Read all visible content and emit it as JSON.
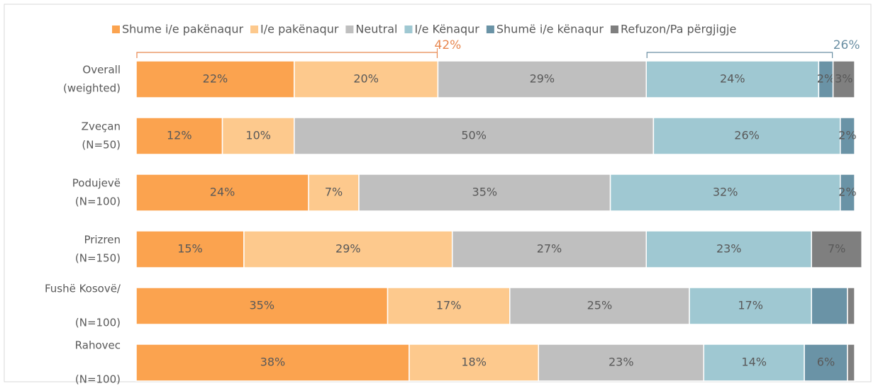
{
  "chart_data": {
    "type": "bar",
    "orientation": "horizontal",
    "stacked": true,
    "categories": [
      [
        "Overall",
        "(weighted)"
      ],
      [
        "Zveçan",
        "(N=50)"
      ],
      [
        "Podujevë",
        "(N=100)"
      ],
      [
        "Prizren",
        "(N=150)"
      ],
      [
        "Fushë Kosovë/",
        "(N=100)"
      ],
      [
        "Rahovec",
        "(N=100)"
      ]
    ],
    "xlim": [
      0,
      100
    ],
    "legend": "top",
    "series": [
      {
        "name": "Shume i/e pakënaqur",
        "color": "#fba34f",
        "values": [
          22,
          12,
          24,
          15,
          35,
          38
        ],
        "value_labels": [
          "22%",
          "12%",
          "24%",
          "15%",
          "35%",
          "38%"
        ]
      },
      {
        "name": "I/e pakënaqur",
        "color": "#fdc98d",
        "values": [
          20,
          10,
          7,
          29,
          17,
          18
        ],
        "value_labels": [
          "20%",
          "10%",
          "7%",
          "29%",
          "17%",
          "18%"
        ]
      },
      {
        "name": "Neutral",
        "color": "#bfbfbf",
        "values": [
          29,
          50,
          35,
          27,
          25,
          23
        ],
        "value_labels": [
          "29%",
          "50%",
          "35%",
          "27%",
          "25%",
          "23%"
        ]
      },
      {
        "name": "I/e Kënaqur",
        "color": "#9fc8d2",
        "values": [
          24,
          26,
          32,
          23,
          17,
          14
        ],
        "value_labels": [
          "24%",
          "26%",
          "32%",
          "23%",
          "17%",
          "14%"
        ]
      },
      {
        "name": "Shumë i/e kënaqur",
        "color": "#6a93a6",
        "values": [
          2,
          2,
          2,
          0,
          5,
          6
        ],
        "value_labels": [
          "2%",
          "2%",
          "2%",
          null,
          null,
          "6%"
        ]
      },
      {
        "name": "Refuzon/Pa përgjigje",
        "color": "#7f7f7f",
        "values": [
          3,
          0,
          0,
          7,
          1,
          1
        ],
        "value_labels": [
          "3%",
          null,
          null,
          "7%",
          null,
          null
        ]
      }
    ],
    "annotations": [
      {
        "text": "42%",
        "row": 0,
        "from_series": 0,
        "to_series": 1,
        "color": "#e8874f"
      },
      {
        "text": "26%",
        "row": 0,
        "from_series": 3,
        "to_series": 4,
        "color": "#6a8fa3"
      }
    ]
  }
}
